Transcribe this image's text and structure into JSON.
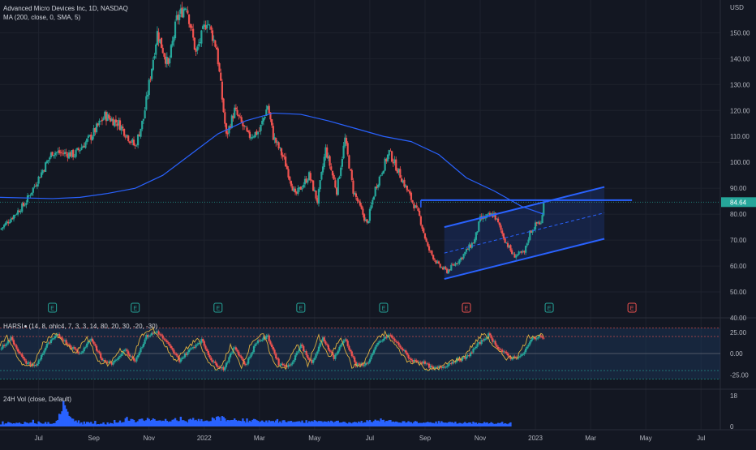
{
  "chart_data": {
    "type": "candlestick",
    "title": "Advanced Micro Devices Inc, 1D, NASDAQ",
    "currency": "USD",
    "ma_label": "MA (200, close, 0, SMA, 5)",
    "last_price_label": "84.64",
    "last_price": 84.64,
    "price_axis": {
      "ticks": [
        150,
        140,
        130,
        120,
        110,
        100,
        90,
        80,
        70,
        60,
        50,
        40
      ],
      "range": [
        40,
        162
      ]
    },
    "x_axis": {
      "labels": [
        "Jul",
        "Sep",
        "Nov",
        "2022",
        "Mar",
        "May",
        "Jul",
        "Sep",
        "Nov",
        "2023",
        "Mar",
        "May",
        "Jul"
      ],
      "label_t": [
        0.5,
        2.5,
        4.5,
        6.5,
        8.5,
        10.5,
        12.5,
        14.5,
        16.5,
        18.5,
        20.5,
        22.5,
        24.5
      ],
      "t_range": [
        -0.9,
        25.2
      ]
    },
    "price_path": [
      [
        -0.9,
        74
      ],
      [
        0,
        84
      ],
      [
        1,
        104
      ],
      [
        1.8,
        103
      ],
      [
        2.4,
        110
      ],
      [
        2.9,
        118
      ],
      [
        3.4,
        115
      ],
      [
        4,
        106
      ],
      [
        4.3,
        117
      ],
      [
        4.8,
        150
      ],
      [
        5.2,
        137
      ],
      [
        5.5,
        155
      ],
      [
        5.85,
        161
      ],
      [
        6.2,
        142
      ],
      [
        6.6,
        155
      ],
      [
        6.95,
        144
      ],
      [
        7.3,
        110
      ],
      [
        7.6,
        120
      ],
      [
        8.1,
        110
      ],
      [
        8.5,
        112
      ],
      [
        8.8,
        122
      ],
      [
        9,
        110
      ],
      [
        9.4,
        101
      ],
      [
        9.8,
        87
      ],
      [
        10.3,
        95
      ],
      [
        10.6,
        85
      ],
      [
        10.9,
        105
      ],
      [
        11.3,
        89
      ],
      [
        11.6,
        109
      ],
      [
        11.9,
        89
      ],
      [
        12.4,
        76
      ],
      [
        12.7,
        90
      ],
      [
        13.2,
        104
      ],
      [
        13.6,
        95
      ],
      [
        14.3,
        79
      ],
      [
        14.6,
        67
      ],
      [
        15,
        60
      ],
      [
        15.3,
        58
      ],
      [
        15.8,
        63
      ],
      [
        16.3,
        70
      ],
      [
        16.5,
        78
      ],
      [
        17,
        80
      ],
      [
        17.4,
        70
      ],
      [
        17.7,
        64
      ],
      [
        18.1,
        65
      ],
      [
        18.3,
        73
      ],
      [
        18.6,
        77
      ],
      [
        18.72,
        76
      ],
      [
        18.8,
        84.64
      ]
    ],
    "ma_200": [
      [
        -0.9,
        86.5
      ],
      [
        1,
        86
      ],
      [
        2,
        86.5
      ],
      [
        3,
        88
      ],
      [
        4,
        90
      ],
      [
        5,
        95
      ],
      [
        6,
        103
      ],
      [
        7,
        111
      ],
      [
        8,
        116
      ],
      [
        9,
        119
      ],
      [
        10,
        118.5
      ],
      [
        11,
        116
      ],
      [
        12,
        113
      ],
      [
        13,
        110
      ],
      [
        14,
        108
      ],
      [
        15,
        103
      ],
      [
        16,
        94
      ],
      [
        17,
        89
      ],
      [
        18,
        83
      ],
      [
        18.8,
        80
      ]
    ],
    "earnings_markers": [
      {
        "t": 1,
        "label": "E",
        "kind": "reported"
      },
      {
        "t": 4,
        "label": "E",
        "kind": "reported"
      },
      {
        "t": 7,
        "label": "E",
        "kind": "reported"
      },
      {
        "t": 10,
        "label": "E",
        "kind": "reported"
      },
      {
        "t": 13,
        "label": "E",
        "kind": "reported"
      },
      {
        "t": 16,
        "label": "E",
        "kind": "upcoming"
      },
      {
        "t": 19,
        "label": "E",
        "kind": "reported"
      },
      {
        "t": 22,
        "label": "E",
        "kind": "upcoming"
      }
    ],
    "drawings": {
      "resistance_line": {
        "t_start": 14.35,
        "t_end": 22.0,
        "price": 85.4
      },
      "channel": {
        "upper": [
          [
            15.2,
            75
          ],
          [
            21.0,
            90.5
          ]
        ],
        "mid": [
          [
            15.2,
            65
          ],
          [
            21.0,
            80.5
          ]
        ],
        "lower": [
          [
            15.2,
            55
          ],
          [
            21.0,
            70.5
          ]
        ]
      },
      "color": "#2962ff"
    },
    "harsi": {
      "label": "HARSI",
      "params": "(14, 8, ohlc4, 7, 3, 3, 14, 80, 20, 30, -20, -30)",
      "axis_ticks": [
        "25.00",
        "0.00",
        "-25.00"
      ],
      "tick_values": [
        25,
        0,
        -25
      ],
      "range": [
        -40,
        40
      ],
      "levels": [
        30,
        20,
        0,
        -20,
        -30
      ],
      "bull_color": "#26a69a",
      "bear_color": "#ef5350",
      "osc_color": "#e0b040",
      "values": [
        [
          -0.9,
          5
        ],
        [
          -0.5,
          18
        ],
        [
          0,
          -10
        ],
        [
          0.4,
          -15
        ],
        [
          0.8,
          10
        ],
        [
          1.2,
          22
        ],
        [
          1.6,
          10
        ],
        [
          2,
          0
        ],
        [
          2.4,
          18
        ],
        [
          2.8,
          -8
        ],
        [
          3.2,
          -12
        ],
        [
          3.6,
          5
        ],
        [
          4,
          -8
        ],
        [
          4.4,
          20
        ],
        [
          4.8,
          26
        ],
        [
          5.2,
          10
        ],
        [
          5.6,
          -8
        ],
        [
          6,
          5
        ],
        [
          6.4,
          16
        ],
        [
          6.8,
          -10
        ],
        [
          7.2,
          -18
        ],
        [
          7.6,
          8
        ],
        [
          8,
          -14
        ],
        [
          8.4,
          14
        ],
        [
          8.8,
          20
        ],
        [
          9.2,
          -12
        ],
        [
          9.6,
          -15
        ],
        [
          10,
          10
        ],
        [
          10.4,
          -12
        ],
        [
          10.8,
          18
        ],
        [
          11.2,
          -5
        ],
        [
          11.6,
          18
        ],
        [
          12,
          -14
        ],
        [
          12.4,
          -12
        ],
        [
          12.8,
          12
        ],
        [
          13.2,
          22
        ],
        [
          13.6,
          8
        ],
        [
          14,
          -8
        ],
        [
          14.4,
          -10
        ],
        [
          14.8,
          -18
        ],
        [
          15.2,
          -15
        ],
        [
          15.6,
          -8
        ],
        [
          16,
          -5
        ],
        [
          16.4,
          10
        ],
        [
          16.8,
          22
        ],
        [
          17.2,
          5
        ],
        [
          17.6,
          -5
        ],
        [
          18,
          -3
        ],
        [
          18.4,
          18
        ],
        [
          18.8,
          20
        ]
      ]
    },
    "volume": {
      "label": "24H Vol (close, Default)",
      "axis_ticks": [
        "18",
        "0"
      ],
      "tick_values": [
        18,
        0
      ],
      "max": 18,
      "color": "#2962ff",
      "t_start": -0.9,
      "t_step": 0.05,
      "values": [
        1.2,
        1.2,
        3.0,
        1.2,
        1.8,
        1.8,
        2.6,
        2.3,
        2.0,
        1.6,
        1.9,
        1.7,
        2.2,
        1.9,
        2.3,
        1.7,
        1.4,
        1.5,
        2.7,
        2.3,
        2.1,
        1.7,
        2.3,
        2.3,
        3.9,
        1.9,
        1.7,
        1.3,
        3.0,
        2.3,
        1.8,
        1.6,
        1.7,
        2.6,
        1.5,
        2.6,
        1.6,
        1.5,
        1.6,
        1.9,
        2.0,
        3.3,
        3.8,
        7.4,
        7.2,
        8.9,
        15.0,
        12.4,
        10.3,
        8.7,
        6.2,
        5.6,
        4.7,
        4.5,
        3.0,
        3.5,
        2.3,
        3.6,
        1.7,
        2.4,
        1.2,
        2.9,
        1.6,
        2.7,
        2.6,
        2.1,
        2.7,
        1.6,
        1.7,
        3.3,
        1.2,
        1.4,
        1.3,
        1.6,
        1.6,
        2.4,
        1.3,
        1.1,
        2.4,
        1.4,
        2.1,
        1.9,
        1.6,
        3.8,
        2.3,
        2.2,
        2.4,
        3.5,
        2.2,
        2.5,
        2.6,
        4.8,
        5.6,
        3.4,
        3.3,
        4.4,
        4.3,
        3.8,
        2.4,
        2.6,
        3.1,
        4.2,
        4.4,
        4.6,
        3.5,
        3.2,
        3.7,
        5.0,
        4.4,
        3.4,
        3.8,
        4.7,
        4.3,
        3.4,
        3.3,
        3.5,
        3.6,
        3.1,
        3.4,
        3.2,
        4.4,
        3.3,
        2.7,
        3.0,
        3.0,
        3.9,
        4.1,
        4.9,
        3.6,
        3.1,
        3.2,
        5.7,
        3.7,
        3.7,
        3.2,
        3.0,
        2.3,
        4.1,
        4.5,
        3.9,
        5.0,
        3.6,
        3.9,
        3.2,
        4.4,
        3.2,
        4.3,
        3.1,
        3.1,
        3.4,
        3.5,
        3.0,
        3.1,
        3.2,
        5.3,
        4.7,
        3.7,
        5.7,
        6.0,
        5.5,
        3.3,
        6.1,
        5.6,
        4.7,
        3.1,
        3.8,
        3.6,
        3.7,
        3.8,
        3.8,
        4.7,
        3.8,
        3.2,
        3.5,
        3.3,
        3.1,
        4.7,
        3.2,
        2.3,
        4.7,
        2.5,
        3.4,
        2.8,
        3.8,
        4.4,
        4.2,
        3.7,
        3.3,
        2.6,
        3.0,
        3.5,
        2.8,
        2.5,
        3.5,
        2.4,
        3.6,
        3.1,
        3.2,
        3.2,
        2.5,
        3.5,
        4.3,
        2.2,
        3.0,
        2.1,
        3.6,
        3.7,
        2.7,
        2.4,
        3.1,
        3.1,
        3.3,
        2.6,
        2.7,
        2.7,
        2.9,
        3.0,
        3.1,
        2.5,
        3.5,
        2.2,
        2.1,
        3.7,
        2.1,
        3.1,
        2.7,
        3.2,
        2.8,
        3.7,
        3.2,
        2.7,
        3.2,
        3.2,
        3.1,
        2.5,
        3.0,
        2.9,
        2.6,
        3.2,
        2.6,
        3.4,
        2.9,
        2.2,
        2.9,
        3.3,
        3.4,
        2.3,
        2.3,
        2.4,
        2.8,
        2.6,
        2.0,
        1.7,
        2.5,
        2.2,
        1.8,
        2.4,
        2.7,
        2.5,
        2.0,
        2.9,
        2.3,
        3.3,
        2.0,
        2.5,
        2.4,
        3.7,
        3.1,
        3.8,
        2.7,
        2.5,
        3.2,
        4.0,
        3.4,
        3.5,
        3.0,
        4.7,
        3.8,
        3.9,
        2.6,
        3.3,
        3.2,
        3.7,
        3.8,
        2.7,
        2.9,
        2.6,
        2.9,
        2.6,
        2.3,
        2.3,
        2.1,
        3.1,
        3.1,
        2.2,
        2.4,
        3.1,
        2.6,
        2.5,
        1.8,
        2.6,
        3.2,
        2.9,
        2.0,
        2.1,
        2.1,
        2.0,
        2.3,
        2.1,
        2.4,
        2.7,
        2.4,
        2.5,
        2.1,
        2.1,
        1.8,
        2.9,
        1.7,
        3.2,
        2.1,
        3.1,
        2.4,
        2.2,
        2.3,
        2.0,
        2.5,
        2.7,
        2.5,
        2.5,
        1.9,
        2.8,
        1.7,
        1.7,
        2.1,
        2.0,
        1.5,
        2.1,
        2.6,
        1.9,
        2.0,
        2.4,
        2.3,
        1.5,
        2.8,
        2.1,
        2.3,
        1.5,
        2.1,
        1.9,
        1.8,
        1.8,
        2.6,
        2.1,
        2.4,
        1.6,
        1.9,
        2.5,
        2.0,
        1.4,
        1.6,
        1.6,
        2.1,
        1.9,
        2.2,
        2.7,
        1.5,
        1.9,
        1.6,
        1.3,
        1.8,
        2.4
      ]
    }
  }
}
